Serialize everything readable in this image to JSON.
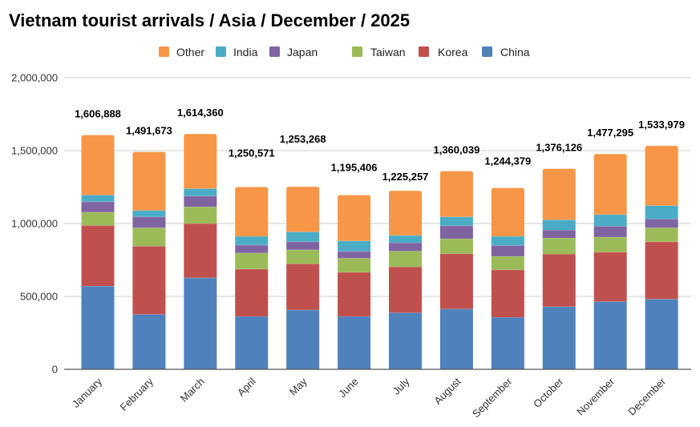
{
  "chart_data": {
    "type": "bar",
    "stacked": true,
    "title": "Vietnam tourist arrivals / Asia / December / 2025",
    "xlabel": "",
    "ylabel": "",
    "ylim": [
      0,
      2000000
    ],
    "yticks": [
      0,
      500000,
      1000000,
      1500000,
      2000000
    ],
    "ytick_labels": [
      "0",
      "500,000",
      "1,000,000",
      "1,500,000",
      "2,000,000"
    ],
    "grid": true,
    "legend_position": "top-center",
    "categories": [
      "January",
      "February",
      "March",
      "April",
      "May",
      "June",
      "July",
      "August",
      "September",
      "October",
      "November",
      "December"
    ],
    "series": [
      {
        "name": "China",
        "color": "#4F81BD",
        "values": [
          571000,
          377000,
          628000,
          363000,
          408000,
          363000,
          388000,
          414000,
          357000,
          430000,
          465000,
          482000
        ]
      },
      {
        "name": "Korea",
        "color": "#C0504D",
        "values": [
          416000,
          468000,
          372000,
          325000,
          316000,
          303000,
          315000,
          379000,
          326000,
          361000,
          339000,
          393000
        ]
      },
      {
        "name": "Taiwan",
        "color": "#9BBB59",
        "values": [
          91000,
          126000,
          115000,
          110000,
          96000,
          96000,
          108000,
          103000,
          92000,
          110000,
          103000,
          96000
        ]
      },
      {
        "name": "Japan",
        "color": "#8064A2",
        "values": [
          72000,
          75000,
          74000,
          55000,
          55000,
          47000,
          57000,
          89000,
          75000,
          55000,
          75000,
          60000
        ]
      },
      {
        "name": "India",
        "color": "#4BACC6",
        "values": [
          46000,
          44000,
          51000,
          59000,
          68000,
          72000,
          51000,
          61000,
          62000,
          70000,
          80000,
          92000
        ]
      },
      {
        "name": "Other",
        "color": "#F79646",
        "values": [
          410888,
          401673,
          374360,
          338571,
          310268,
          314406,
          306257,
          314039,
          332379,
          350126,
          415295,
          410979
        ]
      }
    ],
    "legend_order": [
      "Other",
      "India",
      "Japan",
      "Taiwan",
      "Korea",
      "China"
    ],
    "totals": [
      1606888,
      1491673,
      1614360,
      1250571,
      1253268,
      1195406,
      1225257,
      1360039,
      1244379,
      1376126,
      1477295,
      1533979
    ],
    "total_labels": [
      "1,606,888",
      "1,491,673",
      "1,614,360",
      "1,250,571",
      "1,253,268",
      "1,195,406",
      "1,225,257",
      "1,360,039",
      "1,244,379",
      "1,376,126",
      "1,477,295",
      "1,533,979"
    ]
  }
}
